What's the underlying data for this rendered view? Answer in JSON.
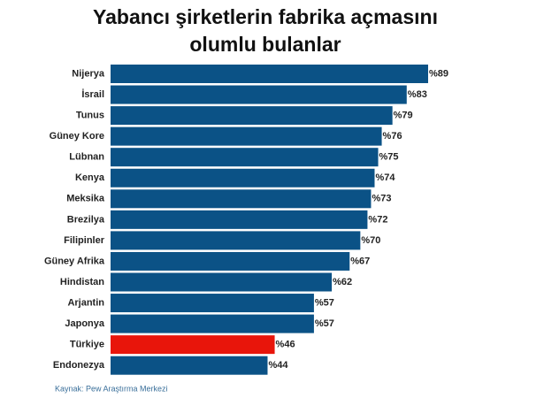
{
  "chart_data": {
    "type": "bar",
    "orientation": "horizontal",
    "title": "Yabancı şirketlerin fabrika açmasını olumlu bulanlar",
    "categories": [
      "Nijerya",
      "İsrail",
      "Tunus",
      "Güney Kore",
      "Lübnan",
      "Kenya",
      "Meksika",
      "Brezilya",
      "Filipinler",
      "Güney Afrika",
      "Hindistan",
      "Arjantin",
      "Japonya",
      "Türkiye",
      "Endonezya"
    ],
    "values": [
      89,
      83,
      79,
      76,
      75,
      74,
      73,
      72,
      70,
      67,
      62,
      57,
      57,
      46,
      44
    ],
    "value_labels": [
      "%89",
      "%83",
      "%79",
      "%76",
      "%75",
      "%74",
      "%73",
      "%72",
      "%70",
      "%67",
      "%62",
      "%57",
      "%57",
      "%46",
      "%44"
    ],
    "colors": [
      "#0b5286",
      "#0b5286",
      "#0b5286",
      "#0b5286",
      "#0b5286",
      "#0b5286",
      "#0b5286",
      "#0b5286",
      "#0b5286",
      "#0b5286",
      "#0b5286",
      "#0b5286",
      "#0b5286",
      "#e8150b",
      "#0b5286"
    ],
    "source": "Kaynak: Pew Araştırma Merkezi"
  }
}
